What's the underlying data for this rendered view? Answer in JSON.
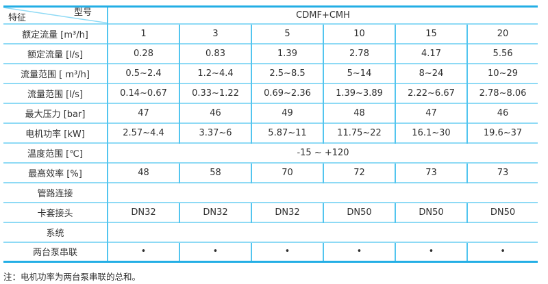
{
  "header": {
    "corner_top_label": "型号",
    "corner_bottom_label": "特征",
    "group_label": "CDMF+CMH"
  },
  "table": {
    "rows": [
      {
        "label": "额定流量 [m³/h]",
        "type": "data",
        "values": [
          "1",
          "3",
          "5",
          "10",
          "15",
          "20"
        ]
      },
      {
        "label": "额定流量 [l/s]",
        "type": "data",
        "values": [
          "0.28",
          "0.83",
          "1.39",
          "2.78",
          "4.17",
          "5.56"
        ]
      },
      {
        "label": "流量范围 [ m³/h]",
        "type": "data",
        "values": [
          "0.5~2.4",
          "1.2~4.4",
          "2.5~8.5",
          "5~14",
          "8~24",
          "10~29"
        ]
      },
      {
        "label": "流量范围 [l/s]",
        "type": "data",
        "values": [
          "0.14~0.67",
          "0.33~1.22",
          "0.69~2.36",
          "1.39~3.89",
          "2.22~6.67",
          "2.78~8.06"
        ]
      },
      {
        "label": "最大压力 [bar]",
        "type": "data",
        "values": [
          "47",
          "46",
          "49",
          "48",
          "47",
          "46"
        ]
      },
      {
        "label": "电机功率 [kW]",
        "type": "data",
        "values": [
          "2.57~4.4",
          "3.37~6",
          "5.87~11",
          "11.75~22",
          "16.1~30",
          "19.6~37"
        ]
      },
      {
        "label": "温度范围 [℃]",
        "type": "merged",
        "value": "-15 ~ +120"
      },
      {
        "label": "最高效率 [%]",
        "type": "data",
        "values": [
          "48",
          "58",
          "70",
          "72",
          "73",
          "73"
        ]
      },
      {
        "label": "管路连接",
        "type": "merged",
        "value": ""
      },
      {
        "label": "卡套接头",
        "type": "data",
        "values": [
          "DN32",
          "DN32",
          "DN32",
          "DN50",
          "DN50",
          "DN50"
        ]
      },
      {
        "label": "系统",
        "type": "merged",
        "value": ""
      },
      {
        "label": "两台泵串联",
        "type": "data",
        "bullets": true,
        "values": [
          "•",
          "•",
          "•",
          "•",
          "•",
          "•"
        ]
      }
    ]
  },
  "footnote": "注：电机功率为两台泵串联的总和。",
  "colors": {
    "outer_border": "#23aee5",
    "horizontal_divider": "#8edaf5",
    "vertical_divider": "#52c5ef",
    "text": "#2f2f2f"
  }
}
